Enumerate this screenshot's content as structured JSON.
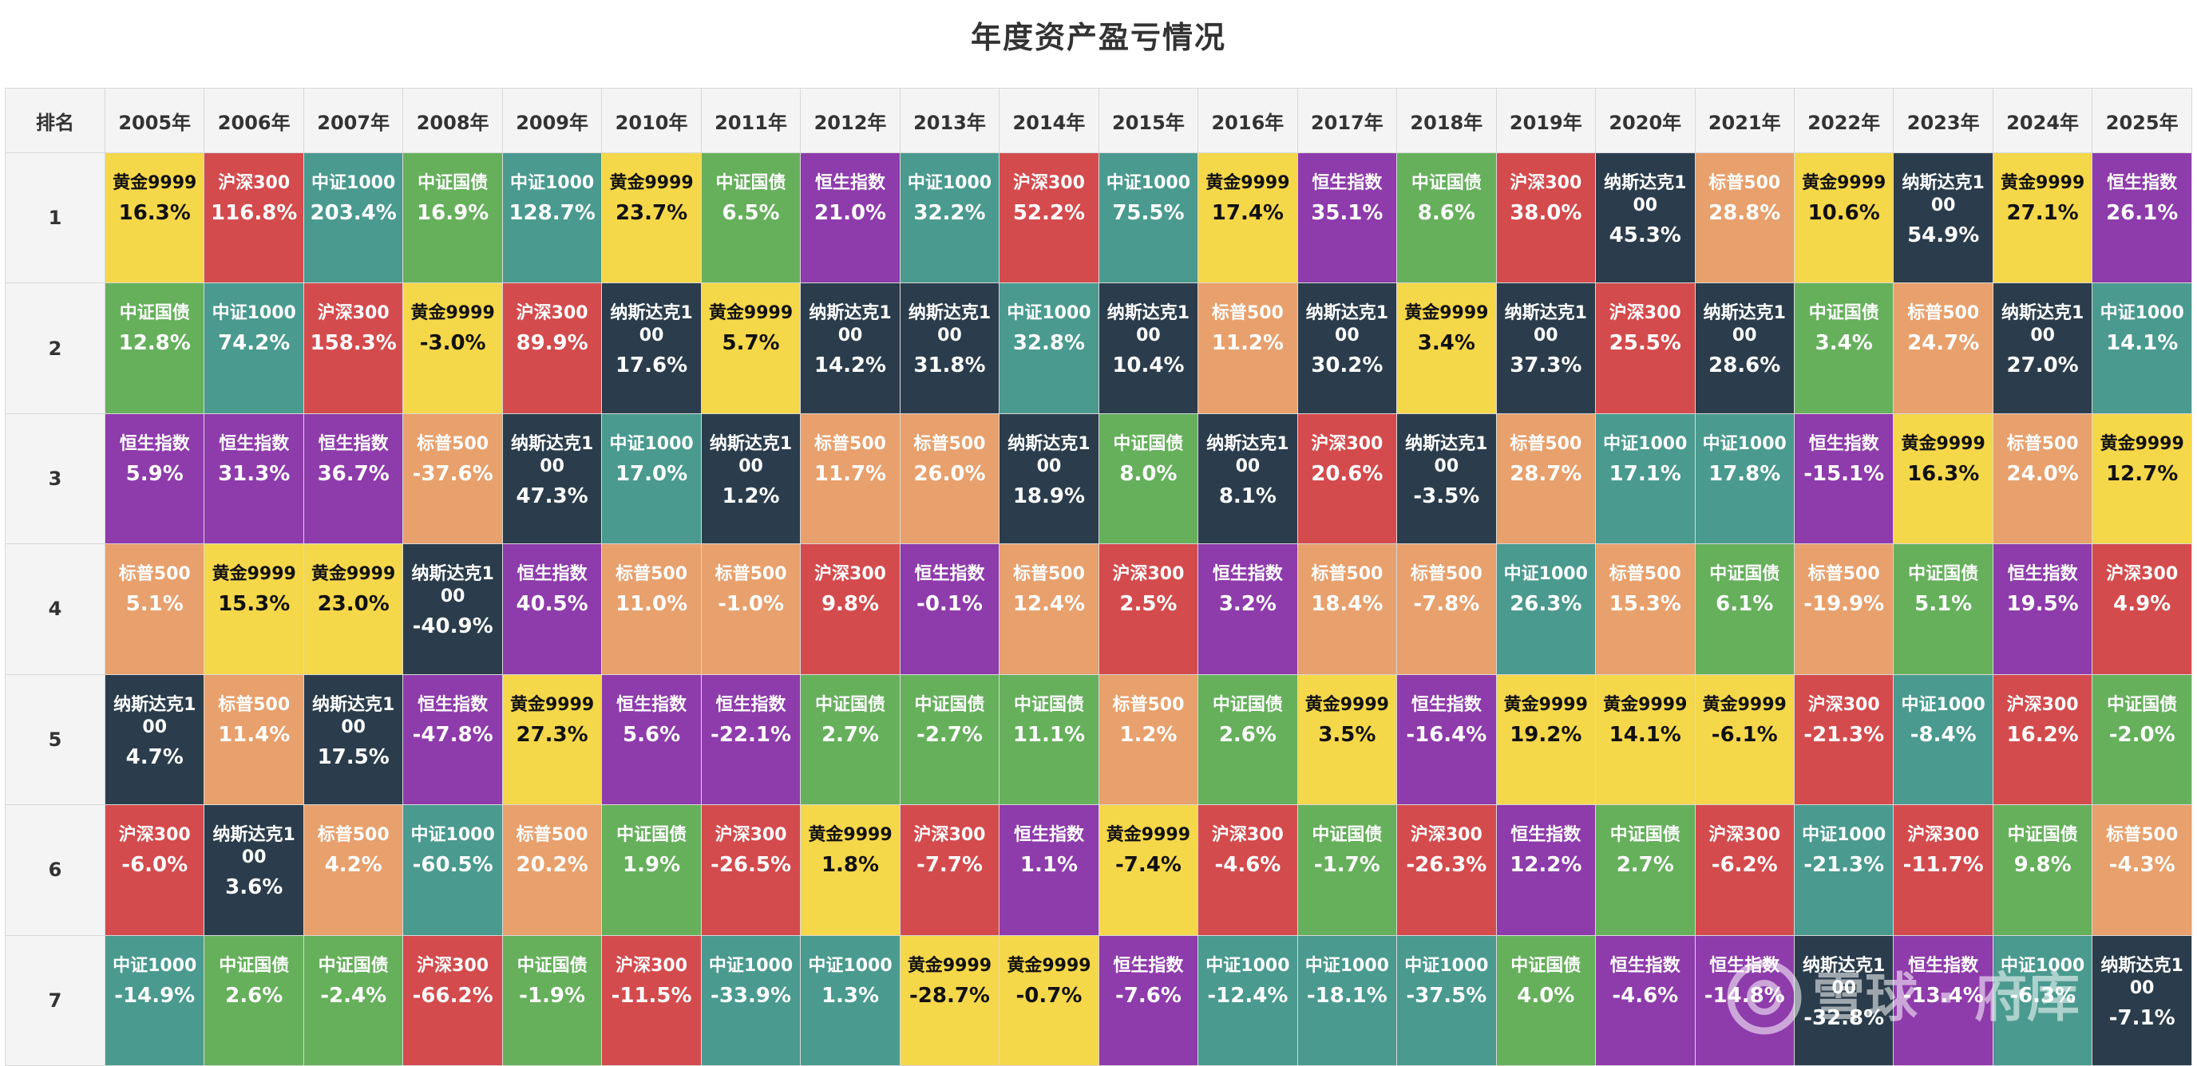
{
  "title": "年度资产盈亏情况",
  "header": {
    "rank_label": "排名",
    "years": [
      "2005年",
      "2006年",
      "2007年",
      "2008年",
      "2009年",
      "2010年",
      "2011年",
      "2012年",
      "2013年",
      "2014年",
      "2015年",
      "2016年",
      "2017年",
      "2018年",
      "2019年",
      "2020年",
      "2021年",
      "2022年",
      "2023年",
      "2024年",
      "2025年"
    ]
  },
  "asset_colors": {
    "黄金9999": "#f5d74a",
    "沪深300": "#d44b4d",
    "中证1000": "#4a9a8f",
    "中证国债": "#66b05c",
    "恒生指数": "#8e3bab",
    "标普500": "#e8a06c",
    "纳斯达克100": "#2b3d4c"
  },
  "dark_text_assets": [
    "黄金9999"
  ],
  "chart_data": {
    "type": "table",
    "title": "年度资产盈亏情况",
    "columns": [
      "排名",
      "2005年",
      "2006年",
      "2007年",
      "2008年",
      "2009年",
      "2010年",
      "2011年",
      "2012年",
      "2013年",
      "2014年",
      "2015年",
      "2016年",
      "2017年",
      "2018年",
      "2019年",
      "2020年",
      "2021年",
      "2022年",
      "2023年",
      "2024年",
      "2025年"
    ],
    "rows": [
      {
        "rank": "1",
        "cells": [
          {
            "asset": "黄金9999",
            "ret": "16.3%"
          },
          {
            "asset": "沪深300",
            "ret": "116.8%"
          },
          {
            "asset": "中证1000",
            "ret": "203.4%"
          },
          {
            "asset": "中证国债",
            "ret": "16.9%"
          },
          {
            "asset": "中证1000",
            "ret": "128.7%"
          },
          {
            "asset": "黄金9999",
            "ret": "23.7%"
          },
          {
            "asset": "中证国债",
            "ret": "6.5%"
          },
          {
            "asset": "恒生指数",
            "ret": "21.0%"
          },
          {
            "asset": "中证1000",
            "ret": "32.2%"
          },
          {
            "asset": "沪深300",
            "ret": "52.2%"
          },
          {
            "asset": "中证1000",
            "ret": "75.5%"
          },
          {
            "asset": "黄金9999",
            "ret": "17.4%"
          },
          {
            "asset": "恒生指数",
            "ret": "35.1%"
          },
          {
            "asset": "中证国债",
            "ret": "8.6%"
          },
          {
            "asset": "沪深300",
            "ret": "38.0%"
          },
          {
            "asset": "纳斯达克100",
            "ret": "45.3%"
          },
          {
            "asset": "标普500",
            "ret": "28.8%"
          },
          {
            "asset": "黄金9999",
            "ret": "10.6%"
          },
          {
            "asset": "纳斯达克100",
            "ret": "54.9%"
          },
          {
            "asset": "黄金9999",
            "ret": "27.1%"
          },
          {
            "asset": "恒生指数",
            "ret": "26.1%"
          }
        ]
      },
      {
        "rank": "2",
        "cells": [
          {
            "asset": "中证国债",
            "ret": "12.8%"
          },
          {
            "asset": "中证1000",
            "ret": "74.2%"
          },
          {
            "asset": "沪深300",
            "ret": "158.3%"
          },
          {
            "asset": "黄金9999",
            "ret": "-3.0%"
          },
          {
            "asset": "沪深300",
            "ret": "89.9%"
          },
          {
            "asset": "纳斯达克100",
            "ret": "17.6%"
          },
          {
            "asset": "黄金9999",
            "ret": "5.7%"
          },
          {
            "asset": "纳斯达克100",
            "ret": "14.2%"
          },
          {
            "asset": "纳斯达克100",
            "ret": "31.8%"
          },
          {
            "asset": "中证1000",
            "ret": "32.8%"
          },
          {
            "asset": "纳斯达克100",
            "ret": "10.4%"
          },
          {
            "asset": "标普500",
            "ret": "11.2%"
          },
          {
            "asset": "纳斯达克100",
            "ret": "30.2%"
          },
          {
            "asset": "黄金9999",
            "ret": "3.4%"
          },
          {
            "asset": "纳斯达克100",
            "ret": "37.3%"
          },
          {
            "asset": "沪深300",
            "ret": "25.5%"
          },
          {
            "asset": "纳斯达克100",
            "ret": "28.6%"
          },
          {
            "asset": "中证国债",
            "ret": "3.4%"
          },
          {
            "asset": "标普500",
            "ret": "24.7%"
          },
          {
            "asset": "纳斯达克100",
            "ret": "27.0%"
          },
          {
            "asset": "中证1000",
            "ret": "14.1%"
          }
        ]
      },
      {
        "rank": "3",
        "cells": [
          {
            "asset": "恒生指数",
            "ret": "5.9%"
          },
          {
            "asset": "恒生指数",
            "ret": "31.3%"
          },
          {
            "asset": "恒生指数",
            "ret": "36.7%"
          },
          {
            "asset": "标普500",
            "ret": "-37.6%"
          },
          {
            "asset": "纳斯达克100",
            "ret": "47.3%"
          },
          {
            "asset": "中证1000",
            "ret": "17.0%"
          },
          {
            "asset": "纳斯达克100",
            "ret": "1.2%"
          },
          {
            "asset": "标普500",
            "ret": "11.7%"
          },
          {
            "asset": "标普500",
            "ret": "26.0%"
          },
          {
            "asset": "纳斯达克100",
            "ret": "18.9%"
          },
          {
            "asset": "中证国债",
            "ret": "8.0%"
          },
          {
            "asset": "纳斯达克100",
            "ret": "8.1%"
          },
          {
            "asset": "沪深300",
            "ret": "20.6%"
          },
          {
            "asset": "纳斯达克100",
            "ret": "-3.5%"
          },
          {
            "asset": "标普500",
            "ret": "28.7%"
          },
          {
            "asset": "中证1000",
            "ret": "17.1%"
          },
          {
            "asset": "中证1000",
            "ret": "17.8%"
          },
          {
            "asset": "恒生指数",
            "ret": "-15.1%"
          },
          {
            "asset": "黄金9999",
            "ret": "16.3%"
          },
          {
            "asset": "标普500",
            "ret": "24.0%"
          },
          {
            "asset": "黄金9999",
            "ret": "12.7%"
          }
        ]
      },
      {
        "rank": "4",
        "cells": [
          {
            "asset": "标普500",
            "ret": "5.1%"
          },
          {
            "asset": "黄金9999",
            "ret": "15.3%"
          },
          {
            "asset": "黄金9999",
            "ret": "23.0%"
          },
          {
            "asset": "纳斯达克100",
            "ret": "-40.9%"
          },
          {
            "asset": "恒生指数",
            "ret": "40.5%"
          },
          {
            "asset": "标普500",
            "ret": "11.0%"
          },
          {
            "asset": "标普500",
            "ret": "-1.0%"
          },
          {
            "asset": "沪深300",
            "ret": "9.8%"
          },
          {
            "asset": "恒生指数",
            "ret": "-0.1%"
          },
          {
            "asset": "标普500",
            "ret": "12.4%"
          },
          {
            "asset": "沪深300",
            "ret": "2.5%"
          },
          {
            "asset": "恒生指数",
            "ret": "3.2%"
          },
          {
            "asset": "标普500",
            "ret": "18.4%"
          },
          {
            "asset": "标普500",
            "ret": "-7.8%"
          },
          {
            "asset": "中证1000",
            "ret": "26.3%"
          },
          {
            "asset": "标普500",
            "ret": "15.3%"
          },
          {
            "asset": "中证国债",
            "ret": "6.1%"
          },
          {
            "asset": "标普500",
            "ret": "-19.9%"
          },
          {
            "asset": "中证国债",
            "ret": "5.1%"
          },
          {
            "asset": "恒生指数",
            "ret": "19.5%"
          },
          {
            "asset": "沪深300",
            "ret": "4.9%"
          }
        ]
      },
      {
        "rank": "5",
        "cells": [
          {
            "asset": "纳斯达克100",
            "ret": "4.7%"
          },
          {
            "asset": "标普500",
            "ret": "11.4%"
          },
          {
            "asset": "纳斯达克100",
            "ret": "17.5%"
          },
          {
            "asset": "恒生指数",
            "ret": "-47.8%"
          },
          {
            "asset": "黄金9999",
            "ret": "27.3%"
          },
          {
            "asset": "恒生指数",
            "ret": "5.6%"
          },
          {
            "asset": "恒生指数",
            "ret": "-22.1%"
          },
          {
            "asset": "中证国债",
            "ret": "2.7%"
          },
          {
            "asset": "中证国债",
            "ret": "-2.7%"
          },
          {
            "asset": "中证国债",
            "ret": "11.1%"
          },
          {
            "asset": "标普500",
            "ret": "1.2%"
          },
          {
            "asset": "中证国债",
            "ret": "2.6%"
          },
          {
            "asset": "黄金9999",
            "ret": "3.5%"
          },
          {
            "asset": "恒生指数",
            "ret": "-16.4%"
          },
          {
            "asset": "黄金9999",
            "ret": "19.2%"
          },
          {
            "asset": "黄金9999",
            "ret": "14.1%"
          },
          {
            "asset": "黄金9999",
            "ret": "-6.1%"
          },
          {
            "asset": "沪深300",
            "ret": "-21.3%"
          },
          {
            "asset": "中证1000",
            "ret": "-8.4%"
          },
          {
            "asset": "沪深300",
            "ret": "16.2%"
          },
          {
            "asset": "中证国债",
            "ret": "-2.0%"
          }
        ]
      },
      {
        "rank": "6",
        "cells": [
          {
            "asset": "沪深300",
            "ret": "-6.0%"
          },
          {
            "asset": "纳斯达克100",
            "ret": "3.6%"
          },
          {
            "asset": "标普500",
            "ret": "4.2%"
          },
          {
            "asset": "中证1000",
            "ret": "-60.5%"
          },
          {
            "asset": "标普500",
            "ret": "20.2%"
          },
          {
            "asset": "中证国债",
            "ret": "1.9%"
          },
          {
            "asset": "沪深300",
            "ret": "-26.5%"
          },
          {
            "asset": "黄金9999",
            "ret": "1.8%"
          },
          {
            "asset": "沪深300",
            "ret": "-7.7%"
          },
          {
            "asset": "恒生指数",
            "ret": "1.1%"
          },
          {
            "asset": "黄金9999",
            "ret": "-7.4%"
          },
          {
            "asset": "沪深300",
            "ret": "-4.6%"
          },
          {
            "asset": "中证国债",
            "ret": "-1.7%"
          },
          {
            "asset": "沪深300",
            "ret": "-26.3%"
          },
          {
            "asset": "恒生指数",
            "ret": "12.2%"
          },
          {
            "asset": "中证国债",
            "ret": "2.7%"
          },
          {
            "asset": "沪深300",
            "ret": "-6.2%"
          },
          {
            "asset": "中证1000",
            "ret": "-21.3%"
          },
          {
            "asset": "沪深300",
            "ret": "-11.7%"
          },
          {
            "asset": "中证国债",
            "ret": "9.8%"
          },
          {
            "asset": "标普500",
            "ret": "-4.3%"
          }
        ]
      },
      {
        "rank": "7",
        "cells": [
          {
            "asset": "中证1000",
            "ret": "-14.9%"
          },
          {
            "asset": "中证国债",
            "ret": "2.6%"
          },
          {
            "asset": "中证国债",
            "ret": "-2.4%"
          },
          {
            "asset": "沪深300",
            "ret": "-66.2%"
          },
          {
            "asset": "中证国债",
            "ret": "-1.9%"
          },
          {
            "asset": "沪深300",
            "ret": "-11.5%"
          },
          {
            "asset": "中证1000",
            "ret": "-33.9%"
          },
          {
            "asset": "中证1000",
            "ret": "1.3%"
          },
          {
            "asset": "黄金9999",
            "ret": "-28.7%"
          },
          {
            "asset": "黄金9999",
            "ret": "-0.7%"
          },
          {
            "asset": "恒生指数",
            "ret": "-7.6%"
          },
          {
            "asset": "中证1000",
            "ret": "-12.4%"
          },
          {
            "asset": "中证1000",
            "ret": "-18.1%"
          },
          {
            "asset": "中证1000",
            "ret": "-37.5%"
          },
          {
            "asset": "中证国债",
            "ret": "4.0%"
          },
          {
            "asset": "恒生指数",
            "ret": "-4.6%"
          },
          {
            "asset": "恒生指数",
            "ret": "-14.8%"
          },
          {
            "asset": "纳斯达克100",
            "ret": "-32.8%"
          },
          {
            "asset": "恒生指数",
            "ret": "-13.4%"
          },
          {
            "asset": "中证1000",
            "ret": "-6.3%"
          },
          {
            "asset": "纳斯达克100",
            "ret": "-7.1%"
          }
        ]
      }
    ]
  },
  "watermark": {
    "text": "雪球 · 府库"
  }
}
